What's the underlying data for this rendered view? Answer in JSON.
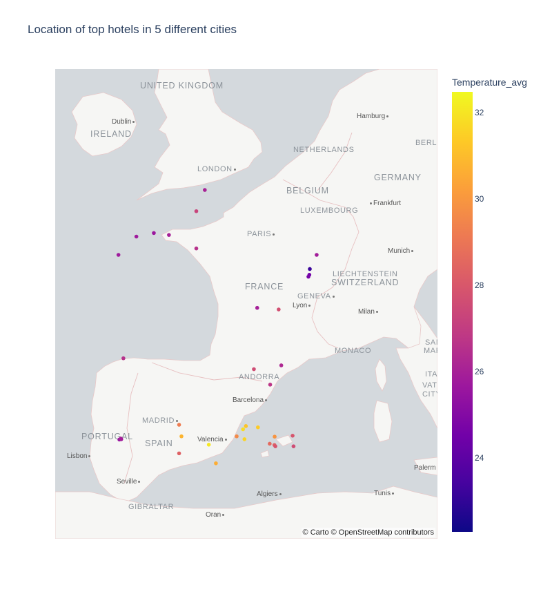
{
  "title": "Location of top hotels in 5 different cities",
  "attribution": "© Carto © OpenStreetMap contributors",
  "colorbar": {
    "title": "Temperature_avg",
    "min": 22.3,
    "max": 32.5,
    "ticks": [
      "24",
      "26",
      "28",
      "30",
      "32"
    ],
    "colorscale": "plasma"
  },
  "map_labels": {
    "countries": [
      {
        "id": "uk",
        "text": "UNITED KINGDOM"
      },
      {
        "id": "ireland",
        "text": "IRELAND"
      },
      {
        "id": "netherlands",
        "text": "NETHERLANDS"
      },
      {
        "id": "belgium",
        "text": "BELGIUM"
      },
      {
        "id": "luxembourg",
        "text": "LUXEMBOURG"
      },
      {
        "id": "germany",
        "text": "GERMANY"
      },
      {
        "id": "liechtenstein",
        "text": "LIECHTENSTEIN"
      },
      {
        "id": "switzerland",
        "text": "SWITZERLAND"
      },
      {
        "id": "france",
        "text": "FRANCE"
      },
      {
        "id": "monaco",
        "text": "MONACO"
      },
      {
        "id": "andorra",
        "text": "ANDORRA"
      },
      {
        "id": "portugal",
        "text": "PORTUGAL"
      },
      {
        "id": "spain",
        "text": "SPAIN"
      },
      {
        "id": "madrid",
        "text": "MADRID"
      },
      {
        "id": "paris",
        "text": "PARIS"
      },
      {
        "id": "london",
        "text": "LONDON"
      },
      {
        "id": "geneva",
        "text": "GENEVA"
      },
      {
        "id": "gibraltar",
        "text": "GIBRALTAR"
      },
      {
        "id": "san-marino",
        "text": "SAN"
      },
      {
        "id": "san-marino-2",
        "text": "MARI"
      },
      {
        "id": "italy",
        "text": "ITAL"
      },
      {
        "id": "vatican",
        "text": "VATICA"
      },
      {
        "id": "vatican-2",
        "text": "CITY"
      },
      {
        "id": "berlin",
        "text": "BERLI"
      }
    ],
    "cities": [
      {
        "id": "dublin",
        "text": "Dublin"
      },
      {
        "id": "hamburg",
        "text": "Hamburg"
      },
      {
        "id": "frankfurt",
        "text": "Frankfurt"
      },
      {
        "id": "munich",
        "text": "Munich"
      },
      {
        "id": "lyon",
        "text": "Lyon"
      },
      {
        "id": "milan",
        "text": "Milan"
      },
      {
        "id": "barcelona",
        "text": "Barcelona"
      },
      {
        "id": "valencia",
        "text": "Valencia"
      },
      {
        "id": "lisbon",
        "text": "Lisbon"
      },
      {
        "id": "seville",
        "text": "Seville"
      },
      {
        "id": "algiers",
        "text": "Algiers"
      },
      {
        "id": "tunis",
        "text": "Tunis"
      },
      {
        "id": "oran",
        "text": "Oran"
      },
      {
        "id": "palermo",
        "text": "Palerm"
      }
    ]
  },
  "chart_data": {
    "type": "scatter_mapbox",
    "title": "Location of top hotels in 5 different cities",
    "color_variable": "Temperature_avg",
    "points": [
      {
        "lon": 2.94,
        "lat": 50.62,
        "t": 26.1
      },
      {
        "lon": 2.58,
        "lat": 49.96,
        "t": 27.3
      },
      {
        "lon": 0.78,
        "lat": 49.28,
        "t": 25.7
      },
      {
        "lon": 0.04,
        "lat": 49.17,
        "t": 25.8
      },
      {
        "lon": 1.42,
        "lat": 49.22,
        "t": 26.0
      },
      {
        "lon": 2.58,
        "lat": 48.8,
        "t": 26.6
      },
      {
        "lon": -0.72,
        "lat": 48.6,
        "t": 25.8
      },
      {
        "lon": 7.68,
        "lat": 48.6,
        "t": 25.9
      },
      {
        "lon": 7.39,
        "lat": 48.16,
        "t": 23.2
      },
      {
        "lon": 7.37,
        "lat": 47.98,
        "t": 24.6
      },
      {
        "lon": 7.33,
        "lat": 47.92,
        "t": 24.7
      },
      {
        "lon": 5.16,
        "lat": 46.95,
        "t": 26.0
      },
      {
        "lon": 6.07,
        "lat": 46.9,
        "t": 27.7
      },
      {
        "lon": -0.51,
        "lat": 45.38,
        "t": 26.6
      },
      {
        "lon": 6.18,
        "lat": 45.16,
        "t": 26.3
      },
      {
        "lon": 5.02,
        "lat": 45.04,
        "t": 27.6
      },
      {
        "lon": 5.71,
        "lat": 44.56,
        "t": 26.8
      },
      {
        "lon": 1.85,
        "lat": 43.31,
        "t": 29.2
      },
      {
        "lon": 4.68,
        "lat": 43.27,
        "t": 31.2
      },
      {
        "lon": 5.19,
        "lat": 43.23,
        "t": 31.4
      },
      {
        "lon": 4.56,
        "lat": 43.17,
        "t": 31.8
      },
      {
        "lon": 1.95,
        "lat": 42.95,
        "t": 30.8
      },
      {
        "lon": 6.66,
        "lat": 42.97,
        "t": 27.9
      },
      {
        "lon": 4.29,
        "lat": 42.95,
        "t": 29.6
      },
      {
        "lon": 5.9,
        "lat": 42.94,
        "t": 29.9
      },
      {
        "lon": 4.62,
        "lat": 42.86,
        "t": 31.6
      },
      {
        "lon": 5.69,
        "lat": 42.72,
        "t": 28.6
      },
      {
        "lon": 5.89,
        "lat": 42.68,
        "t": 28.3
      },
      {
        "lon": 5.93,
        "lat": 42.64,
        "t": 27.9
      },
      {
        "lon": 6.7,
        "lat": 42.64,
        "t": 27.6
      },
      {
        "lon": 3.11,
        "lat": 42.69,
        "t": 32.1
      },
      {
        "lon": -0.68,
        "lat": 42.85,
        "t": 25.6
      },
      {
        "lon": -0.6,
        "lat": 42.86,
        "t": 25.8
      },
      {
        "lon": -0.62,
        "lat": 42.88,
        "t": 26.0
      },
      {
        "lon": 1.85,
        "lat": 42.42,
        "t": 28.3
      },
      {
        "lon": 3.41,
        "lat": 42.11,
        "t": 30.6
      }
    ]
  }
}
